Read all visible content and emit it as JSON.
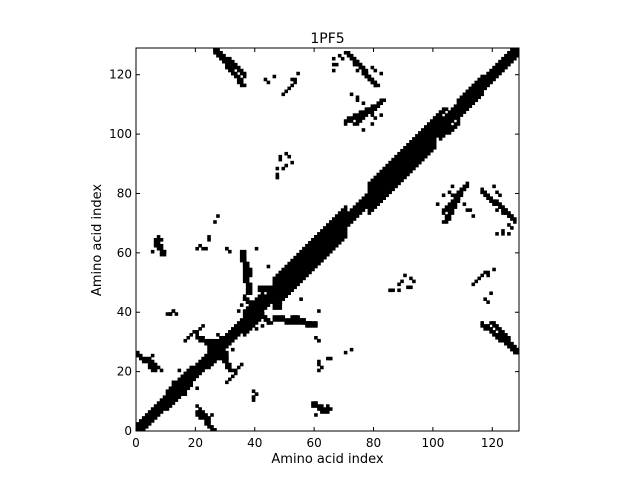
{
  "chart_data": {
    "type": "heatmap",
    "title": "1PF5",
    "xlabel": "Amino acid index",
    "ylabel": "Amino acid index",
    "xlim": [
      0,
      129
    ],
    "ylim": [
      0,
      129
    ],
    "xticks": [
      0,
      20,
      40,
      60,
      80,
      100,
      120
    ],
    "yticks": [
      0,
      20,
      40,
      60,
      80,
      100,
      120
    ],
    "colors": {
      "contact": "#000000",
      "background": "#ffffff",
      "axes": "#000000"
    },
    "diagonal_half_width": 2,
    "diagonal_thick_segments": [
      {
        "i_start": 10,
        "i_end": 18,
        "half_width": 3
      },
      {
        "i_start": 24,
        "i_end": 28,
        "half_width": 3
      },
      {
        "i_start": 36,
        "i_end": 42,
        "half_width": 4
      },
      {
        "i_start": 46,
        "i_end": 70,
        "half_width": 5
      },
      {
        "i_start": 78,
        "i_end": 100,
        "half_width": 5
      },
      {
        "i_start": 108,
        "i_end": 116,
        "half_width": 3
      }
    ],
    "contact_strokes": [
      {
        "x1": 26,
        "y1": 128,
        "x2": 36,
        "y2": 119,
        "w": 2
      },
      {
        "x1": 71,
        "y1": 126,
        "x2": 80,
        "y2": 116,
        "w": 2
      },
      {
        "x1": 70,
        "y1": 103,
        "x2": 81,
        "y2": 109,
        "w": 2
      },
      {
        "x1": 102,
        "y1": 98,
        "x2": 108,
        "y2": 103,
        "w": 2
      },
      {
        "x1": 103,
        "y1": 73,
        "x2": 111,
        "y2": 82,
        "w": 2
      },
      {
        "x1": 116,
        "y1": 80,
        "x2": 125,
        "y2": 72,
        "w": 2
      },
      {
        "x1": 116,
        "y1": 35,
        "x2": 128,
        "y2": 26,
        "w": 2
      },
      {
        "x1": 0,
        "y1": 25,
        "x2": 6,
        "y2": 20,
        "w": 2
      },
      {
        "x1": 20,
        "y1": 31,
        "x2": 30,
        "y2": 24,
        "w": 2
      },
      {
        "x1": 30,
        "y1": 16,
        "x2": 35,
        "y2": 22,
        "w": 1
      },
      {
        "x1": 36,
        "y1": 44,
        "x2": 44,
        "y2": 36,
        "w": 2
      },
      {
        "x1": 36,
        "y1": 57,
        "x2": 38,
        "y2": 52,
        "w": 2
      },
      {
        "x1": 46,
        "y1": 37,
        "x2": 60,
        "y2": 35,
        "w": 2
      },
      {
        "x1": 59,
        "y1": 8,
        "x2": 64,
        "y2": 6,
        "w": 2
      },
      {
        "x1": 41,
        "y1": 47,
        "x2": 50,
        "y2": 46,
        "w": 2
      },
      {
        "x1": 56,
        "y1": 60,
        "x2": 60,
        "y2": 64,
        "w": 2
      },
      {
        "x1": 113,
        "y1": 49,
        "x2": 117,
        "y2": 53,
        "w": 1
      }
    ],
    "contact_points": [
      [
        5,
        60
      ],
      [
        6,
        62
      ],
      [
        7,
        65
      ],
      [
        8,
        64
      ],
      [
        9,
        60
      ],
      [
        10,
        39
      ],
      [
        11,
        39
      ],
      [
        12,
        40
      ],
      [
        13,
        39
      ],
      [
        5,
        25
      ],
      [
        7,
        21
      ],
      [
        8,
        20
      ],
      [
        20,
        5
      ],
      [
        21,
        4
      ],
      [
        22,
        6
      ],
      [
        23,
        5
      ],
      [
        24,
        4
      ],
      [
        18,
        16
      ],
      [
        20,
        14
      ],
      [
        16,
        12
      ],
      [
        14,
        13
      ],
      [
        12,
        14
      ],
      [
        24,
        30
      ],
      [
        26,
        29
      ],
      [
        28,
        27
      ],
      [
        30,
        26
      ],
      [
        32,
        27
      ],
      [
        30,
        61
      ],
      [
        31,
        60
      ],
      [
        22,
        61
      ],
      [
        23,
        61
      ],
      [
        24,
        65
      ],
      [
        34,
        40
      ],
      [
        35,
        42
      ],
      [
        38,
        40
      ],
      [
        39,
        38
      ],
      [
        40,
        41
      ],
      [
        39,
        11
      ],
      [
        40,
        12
      ],
      [
        44,
        55
      ],
      [
        48,
        51
      ],
      [
        50,
        47
      ],
      [
        48,
        92
      ],
      [
        50,
        93
      ],
      [
        51,
        92
      ],
      [
        47,
        88
      ],
      [
        47,
        85
      ],
      [
        53,
        56
      ],
      [
        54,
        55
      ],
      [
        57,
        58
      ],
      [
        58,
        61
      ],
      [
        60,
        64
      ],
      [
        61,
        30
      ],
      [
        64,
        24
      ],
      [
        62,
        21
      ],
      [
        61,
        20
      ],
      [
        67,
        123
      ],
      [
        73,
        123
      ],
      [
        74,
        121
      ],
      [
        68,
        126
      ],
      [
        69,
        125
      ],
      [
        66,
        121
      ],
      [
        44,
        117
      ],
      [
        52,
        118
      ],
      [
        53,
        118
      ],
      [
        26,
        70
      ],
      [
        27,
        72
      ],
      [
        40,
        61
      ],
      [
        85,
        47
      ],
      [
        86,
        47
      ],
      [
        88,
        49
      ],
      [
        89,
        50
      ],
      [
        90,
        52
      ],
      [
        91,
        48
      ],
      [
        100,
        105
      ],
      [
        101,
        106
      ],
      [
        102,
        107
      ],
      [
        104,
        104
      ],
      [
        105,
        80
      ],
      [
        106,
        79
      ],
      [
        108,
        78
      ],
      [
        110,
        76
      ],
      [
        112,
        74
      ],
      [
        113,
        72
      ],
      [
        111,
        74
      ],
      [
        120,
        82
      ],
      [
        121,
        80
      ],
      [
        122,
        79
      ],
      [
        124,
        74
      ],
      [
        126,
        72
      ],
      [
        123,
        66
      ],
      [
        125,
        66
      ],
      [
        127,
        70
      ],
      [
        118,
        43
      ],
      [
        119,
        46
      ],
      [
        120,
        54
      ],
      [
        120,
        32
      ],
      [
        122,
        30
      ],
      [
        124,
        29
      ],
      [
        126,
        27
      ],
      [
        127,
        26
      ],
      [
        101,
        76
      ],
      [
        103,
        79
      ],
      [
        106,
        82
      ],
      [
        130,
        129
      ],
      [
        0,
        1
      ]
    ]
  }
}
